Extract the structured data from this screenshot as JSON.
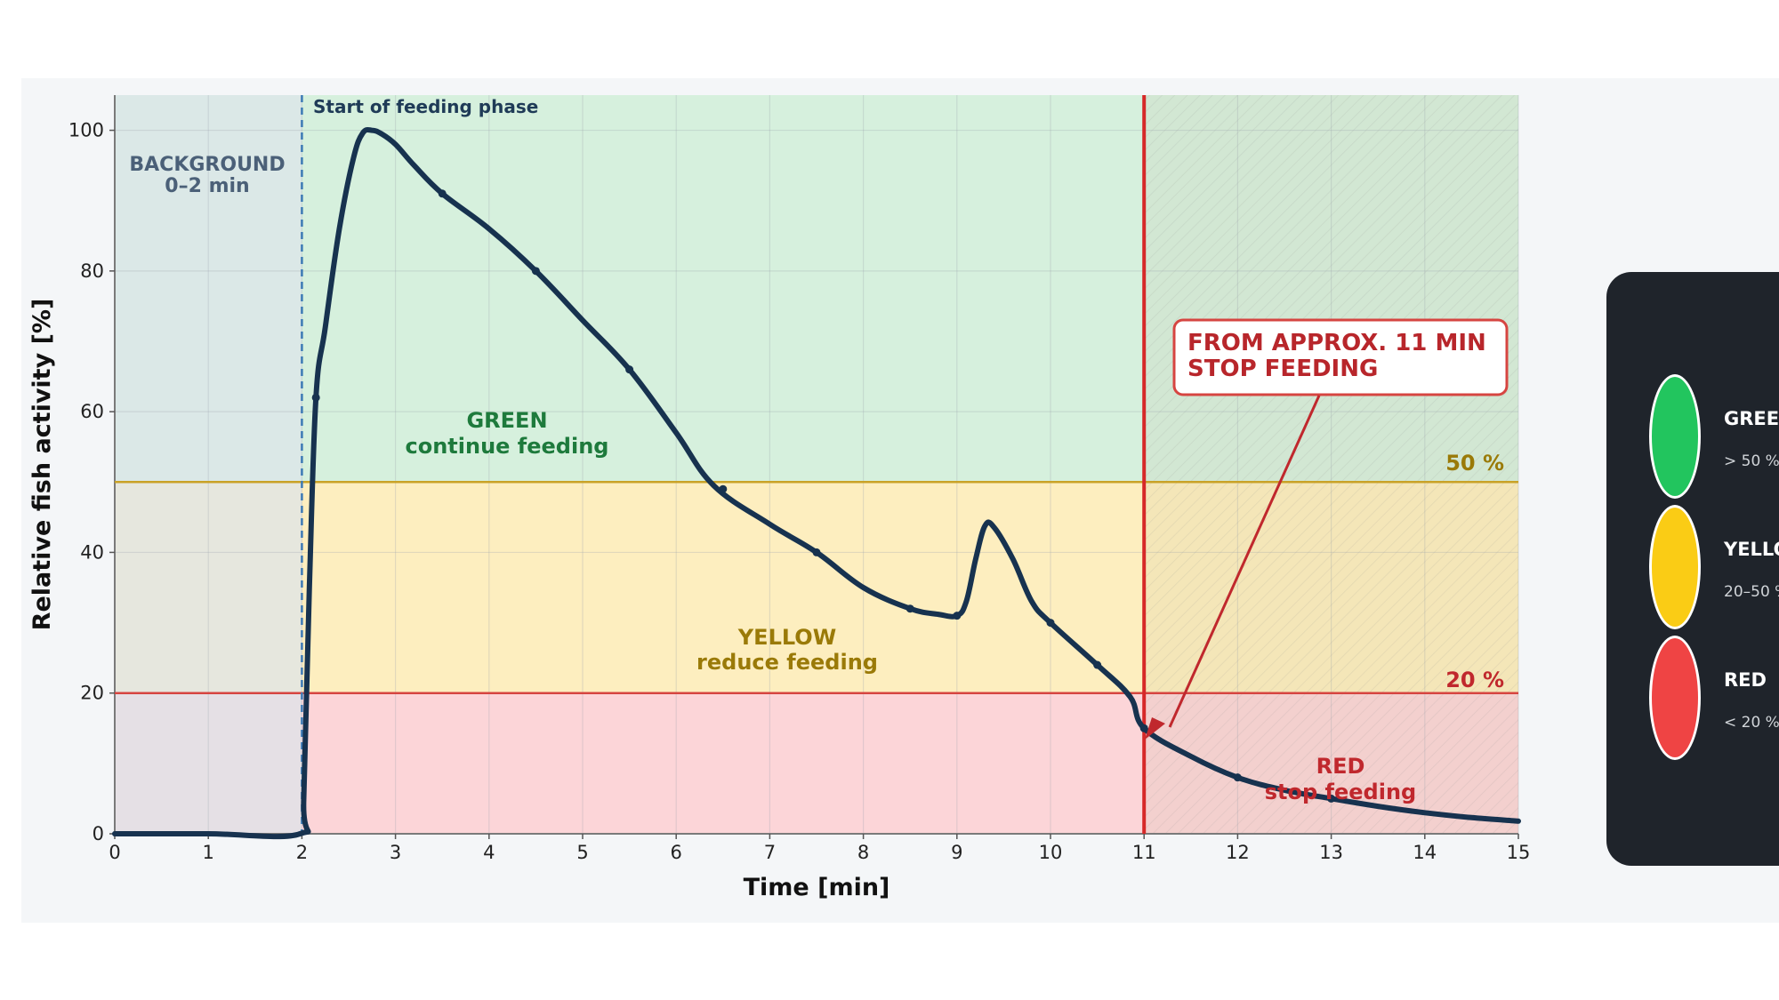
{
  "chart_data": {
    "type": "line",
    "xlabel": "Time [min]",
    "ylabel": "Relative fish activity [%]",
    "xlim": [
      0,
      15
    ],
    "ylim": [
      0,
      105
    ],
    "xticks": [
      0,
      1,
      2,
      3,
      4,
      5,
      6,
      7,
      8,
      9,
      10,
      11,
      12,
      13,
      14,
      15
    ],
    "yticks": [
      0,
      20,
      40,
      60,
      80,
      100
    ],
    "grid": true,
    "series": [
      {
        "color": "#17324f",
        "points": [
          [
            0,
            0
          ],
          [
            1,
            0
          ],
          [
            1.98,
            0
          ],
          [
            2.02,
            5
          ],
          [
            2.08,
            35
          ],
          [
            2.15,
            62
          ],
          [
            2.25,
            72
          ],
          [
            2.4,
            86
          ],
          [
            2.55,
            96
          ],
          [
            2.65,
            99.6
          ],
          [
            2.75,
            100
          ],
          [
            2.85,
            99.5
          ],
          [
            3.0,
            98
          ],
          [
            3.2,
            95
          ],
          [
            3.5,
            91
          ],
          [
            4.0,
            86
          ],
          [
            4.5,
            80
          ],
          [
            5.0,
            73
          ],
          [
            5.5,
            66
          ],
          [
            6.0,
            57
          ],
          [
            6.4,
            49.5
          ],
          [
            7.0,
            44
          ],
          [
            7.5,
            40
          ],
          [
            8.0,
            35
          ],
          [
            8.5,
            32
          ],
          [
            8.8,
            31.2
          ],
          [
            9.0,
            31
          ],
          [
            9.1,
            33
          ],
          [
            9.2,
            39
          ],
          [
            9.3,
            43.8
          ],
          [
            9.4,
            43.5
          ],
          [
            9.6,
            39
          ],
          [
            9.8,
            33
          ],
          [
            10.0,
            30
          ],
          [
            10.5,
            24
          ],
          [
            10.85,
            19.5
          ],
          [
            11.0,
            15
          ],
          [
            11.5,
            11
          ],
          [
            12.0,
            8
          ],
          [
            12.5,
            6.2
          ],
          [
            13.0,
            5
          ],
          [
            13.5,
            3.9
          ],
          [
            14.0,
            3
          ],
          [
            14.5,
            2.3
          ],
          [
            15.0,
            1.8
          ]
        ],
        "markers": [
          [
            2.15,
            62
          ],
          [
            3.5,
            91
          ],
          [
            4.5,
            80
          ],
          [
            5.5,
            66
          ],
          [
            6.5,
            49
          ],
          [
            7.5,
            40
          ],
          [
            8.5,
            32
          ],
          [
            9.0,
            31
          ],
          [
            10.0,
            30
          ],
          [
            10.5,
            24
          ],
          [
            11.0,
            15
          ],
          [
            12.0,
            8
          ],
          [
            13.0,
            5
          ]
        ]
      }
    ],
    "zones": [
      {
        "name": "green",
        "from": 50,
        "to": 105,
        "color": "#d6f0dd"
      },
      {
        "name": "yellow",
        "from": 20,
        "to": 50,
        "color": "#fdeebf"
      },
      {
        "name": "red",
        "from": 0,
        "to": 20,
        "color": "#fcd5d8"
      }
    ],
    "background_span": {
      "from": 0,
      "to": 2,
      "color": "#dce4ea"
    },
    "stop_span": {
      "from": 11,
      "to": 15
    },
    "thresholds": [
      {
        "value": 50,
        "label": "50 %",
        "color": "#c9a227"
      },
      {
        "value": 20,
        "label": "20 %",
        "color": "#d64541"
      }
    ],
    "feeding_start": {
      "x": 2,
      "label": "Start of feeding phase"
    },
    "stop_line": {
      "x": 11,
      "color": "#d62828"
    },
    "annotations": {
      "background_line1": "BACKGROUND",
      "background_line2": "0–2 min",
      "green_line1": "GREEN",
      "green_line2": "continue feeding",
      "yellow_line1": "YELLOW",
      "yellow_line2": "reduce feeding",
      "red_line1": "RED",
      "red_line2": "stop feeding",
      "stop_line1": "FROM APPROX. 11 MIN",
      "stop_line2": "STOP FEEDING",
      "label_50": "50 %",
      "label_20": "20 %"
    }
  },
  "legend": {
    "items": [
      {
        "label": "GREEN",
        "range": "> 50 %",
        "color": "#22c55e"
      },
      {
        "label": "YELLOW",
        "range": "20–50 %",
        "color": "#facc15"
      },
      {
        "label": "RED",
        "range": "< 20 %",
        "color": "#ef4444"
      }
    ]
  }
}
